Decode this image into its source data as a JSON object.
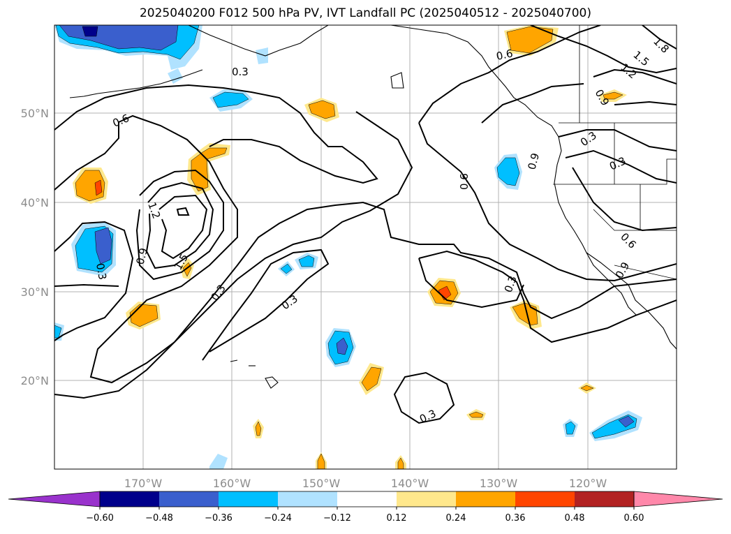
{
  "title": "2025040200 F012 500 hPa PV, IVT Landfall PC (2025040512 - 2025040700)",
  "lon_labels": [
    "170°W",
    "160°W",
    "150°W",
    "140°W",
    "130°W",
    "120°W"
  ],
  "lat_labels": [
    "50°N",
    "40°N",
    "30°N",
    "20°N"
  ],
  "colorbar": {
    "levels": [
      "−0.60",
      "−0.48",
      "−0.36",
      "−0.24",
      "−0.12",
      "0.12",
      "0.24",
      "0.36",
      "0.48",
      "0.60"
    ],
    "colors": [
      "#9932cc",
      "#00008b",
      "#3a5fcd",
      "#00bfff",
      "#b0e2ff",
      "#ffffff",
      "#ffe88c",
      "#ffa500",
      "#ff4500",
      "#b22222",
      "#ff88aa"
    ]
  },
  "contour_labels": [
    "0.3",
    "0.6",
    "0.9",
    "1.2",
    "1.5",
    "1.8",
    "0.3",
    "0.6",
    "0.9",
    "1.2",
    "1.5",
    "0.3",
    "0.3",
    "0.3",
    "0.3",
    "0.6",
    "0.9",
    "0.3",
    "0.6",
    "0.9",
    "0.3",
    "0.6",
    "0.9",
    "0.3"
  ]
}
